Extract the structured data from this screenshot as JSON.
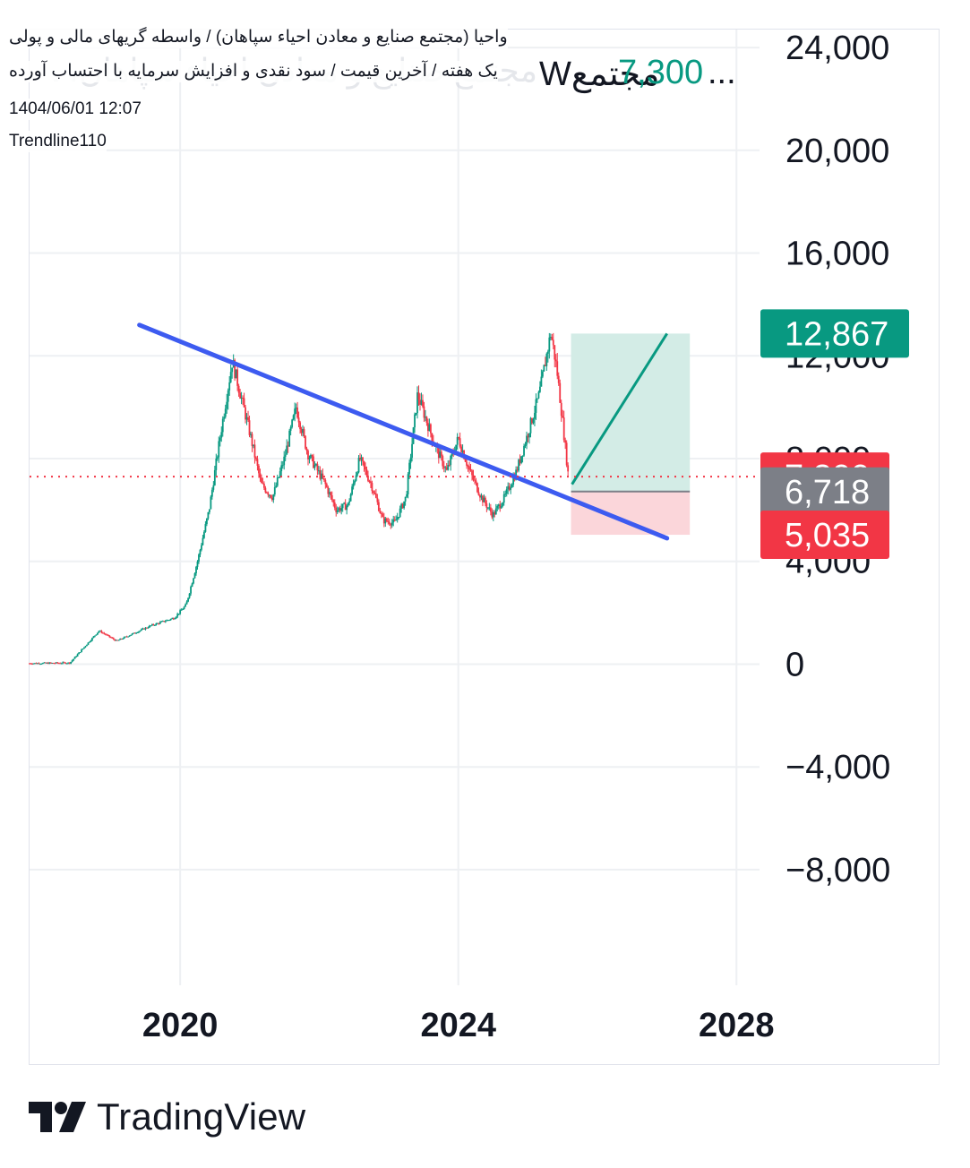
{
  "header": {
    "line1": "واحیا (مجتمع صنایع و معادن احیاء سپاهان) / واسطه گریهای مالی و پولی",
    "line2": "یک هفته / آخرین قیمت / سود نقدی و افزایش سرمایه با احتساب آورده",
    "timestamp": "1404/06/01 12:07",
    "author": "Trendline110",
    "ticker": "Wمجتمع",
    "ticker_ghost": "مجتمع صنایع و معادن احیاء سپاهان، 1",
    "price": "7,300",
    "ellipsis": "..."
  },
  "branding": {
    "name": "TradingView"
  },
  "colors": {
    "up": "#089981",
    "down": "#f23645",
    "trendline": "#3d5bf0",
    "target_zone": "#d3ece6",
    "stop_zone": "#fbd6da",
    "grid": "#eef0f3",
    "badge_gray": "#7c7f87"
  },
  "chart_data": {
    "type": "candlestick",
    "title": "",
    "x_axis": {
      "type": "time",
      "range": [
        "2017-11-01",
        "2028-05-01"
      ],
      "tick_labels": [
        "2020",
        "2024",
        "2028"
      ]
    },
    "y_axis": {
      "range": [
        -12500,
        24700
      ],
      "tick_labels": [
        "24,000",
        "20,000",
        "16,000",
        "12,000",
        "8,000",
        "4,000",
        "0",
        "−4,000",
        "−8,000"
      ],
      "position": "right"
    },
    "grid": true,
    "price_path": [
      [
        "2017-11-01",
        30
      ],
      [
        "2018-06-01",
        50
      ],
      [
        "2018-11-01",
        1300
      ],
      [
        "2019-02-01",
        900
      ],
      [
        "2019-08-01",
        1500
      ],
      [
        "2019-12-01",
        1800
      ],
      [
        "2020-02-01",
        2300
      ],
      [
        "2020-04-01",
        4000
      ],
      [
        "2020-06-01",
        6000
      ],
      [
        "2020-08-01",
        9000
      ],
      [
        "2020-10-01",
        11800
      ],
      [
        "2021-01-01",
        9000
      ],
      [
        "2021-03-01",
        7000
      ],
      [
        "2021-05-01",
        6500
      ],
      [
        "2021-07-01",
        8000
      ],
      [
        "2021-09-01",
        10000
      ],
      [
        "2021-11-01",
        8200
      ],
      [
        "2022-02-01",
        7000
      ],
      [
        "2022-04-01",
        6000
      ],
      [
        "2022-06-01",
        6200
      ],
      [
        "2022-08-01",
        8000
      ],
      [
        "2022-10-01",
        7000
      ],
      [
        "2022-12-01",
        5600
      ],
      [
        "2023-02-01",
        5500
      ],
      [
        "2023-04-01",
        6500
      ],
      [
        "2023-06-01",
        10500
      ],
      [
        "2023-09-01",
        8500
      ],
      [
        "2023-11-01",
        7500
      ],
      [
        "2024-01-01",
        8800
      ],
      [
        "2024-03-01",
        7500
      ],
      [
        "2024-05-01",
        6500
      ],
      [
        "2024-07-01",
        5800
      ],
      [
        "2024-09-01",
        6500
      ],
      [
        "2024-11-01",
        7500
      ],
      [
        "2025-01-01",
        9000
      ],
      [
        "2025-03-01",
        10500
      ],
      [
        "2025-05-01",
        12900
      ],
      [
        "2025-06-01",
        11500
      ],
      [
        "2025-07-01",
        9500
      ],
      [
        "2025-08-01",
        7300
      ]
    ],
    "trendline": {
      "start": [
        "2019-06-01",
        13200
      ],
      "end": [
        "2027-01-01",
        4900
      ]
    },
    "long_position": {
      "x_start": "2025-08-15",
      "x_end": "2027-05-01",
      "entry": 6718,
      "target": 12867,
      "stop": 5035,
      "arrow_start": [
        "2025-08-20",
        7000
      ],
      "arrow_end": [
        "2027-01-01",
        12867
      ]
    },
    "last_price": 7300,
    "price_labels": [
      {
        "value": 12867,
        "text": "12,867",
        "color": "#089981"
      },
      {
        "value": 7300,
        "text": "7,300",
        "color": "#f23645"
      },
      {
        "value": 6718,
        "text": "6,718",
        "color": "#7c7f87"
      },
      {
        "value": 5035,
        "text": "5,035",
        "color": "#f23645"
      }
    ]
  }
}
